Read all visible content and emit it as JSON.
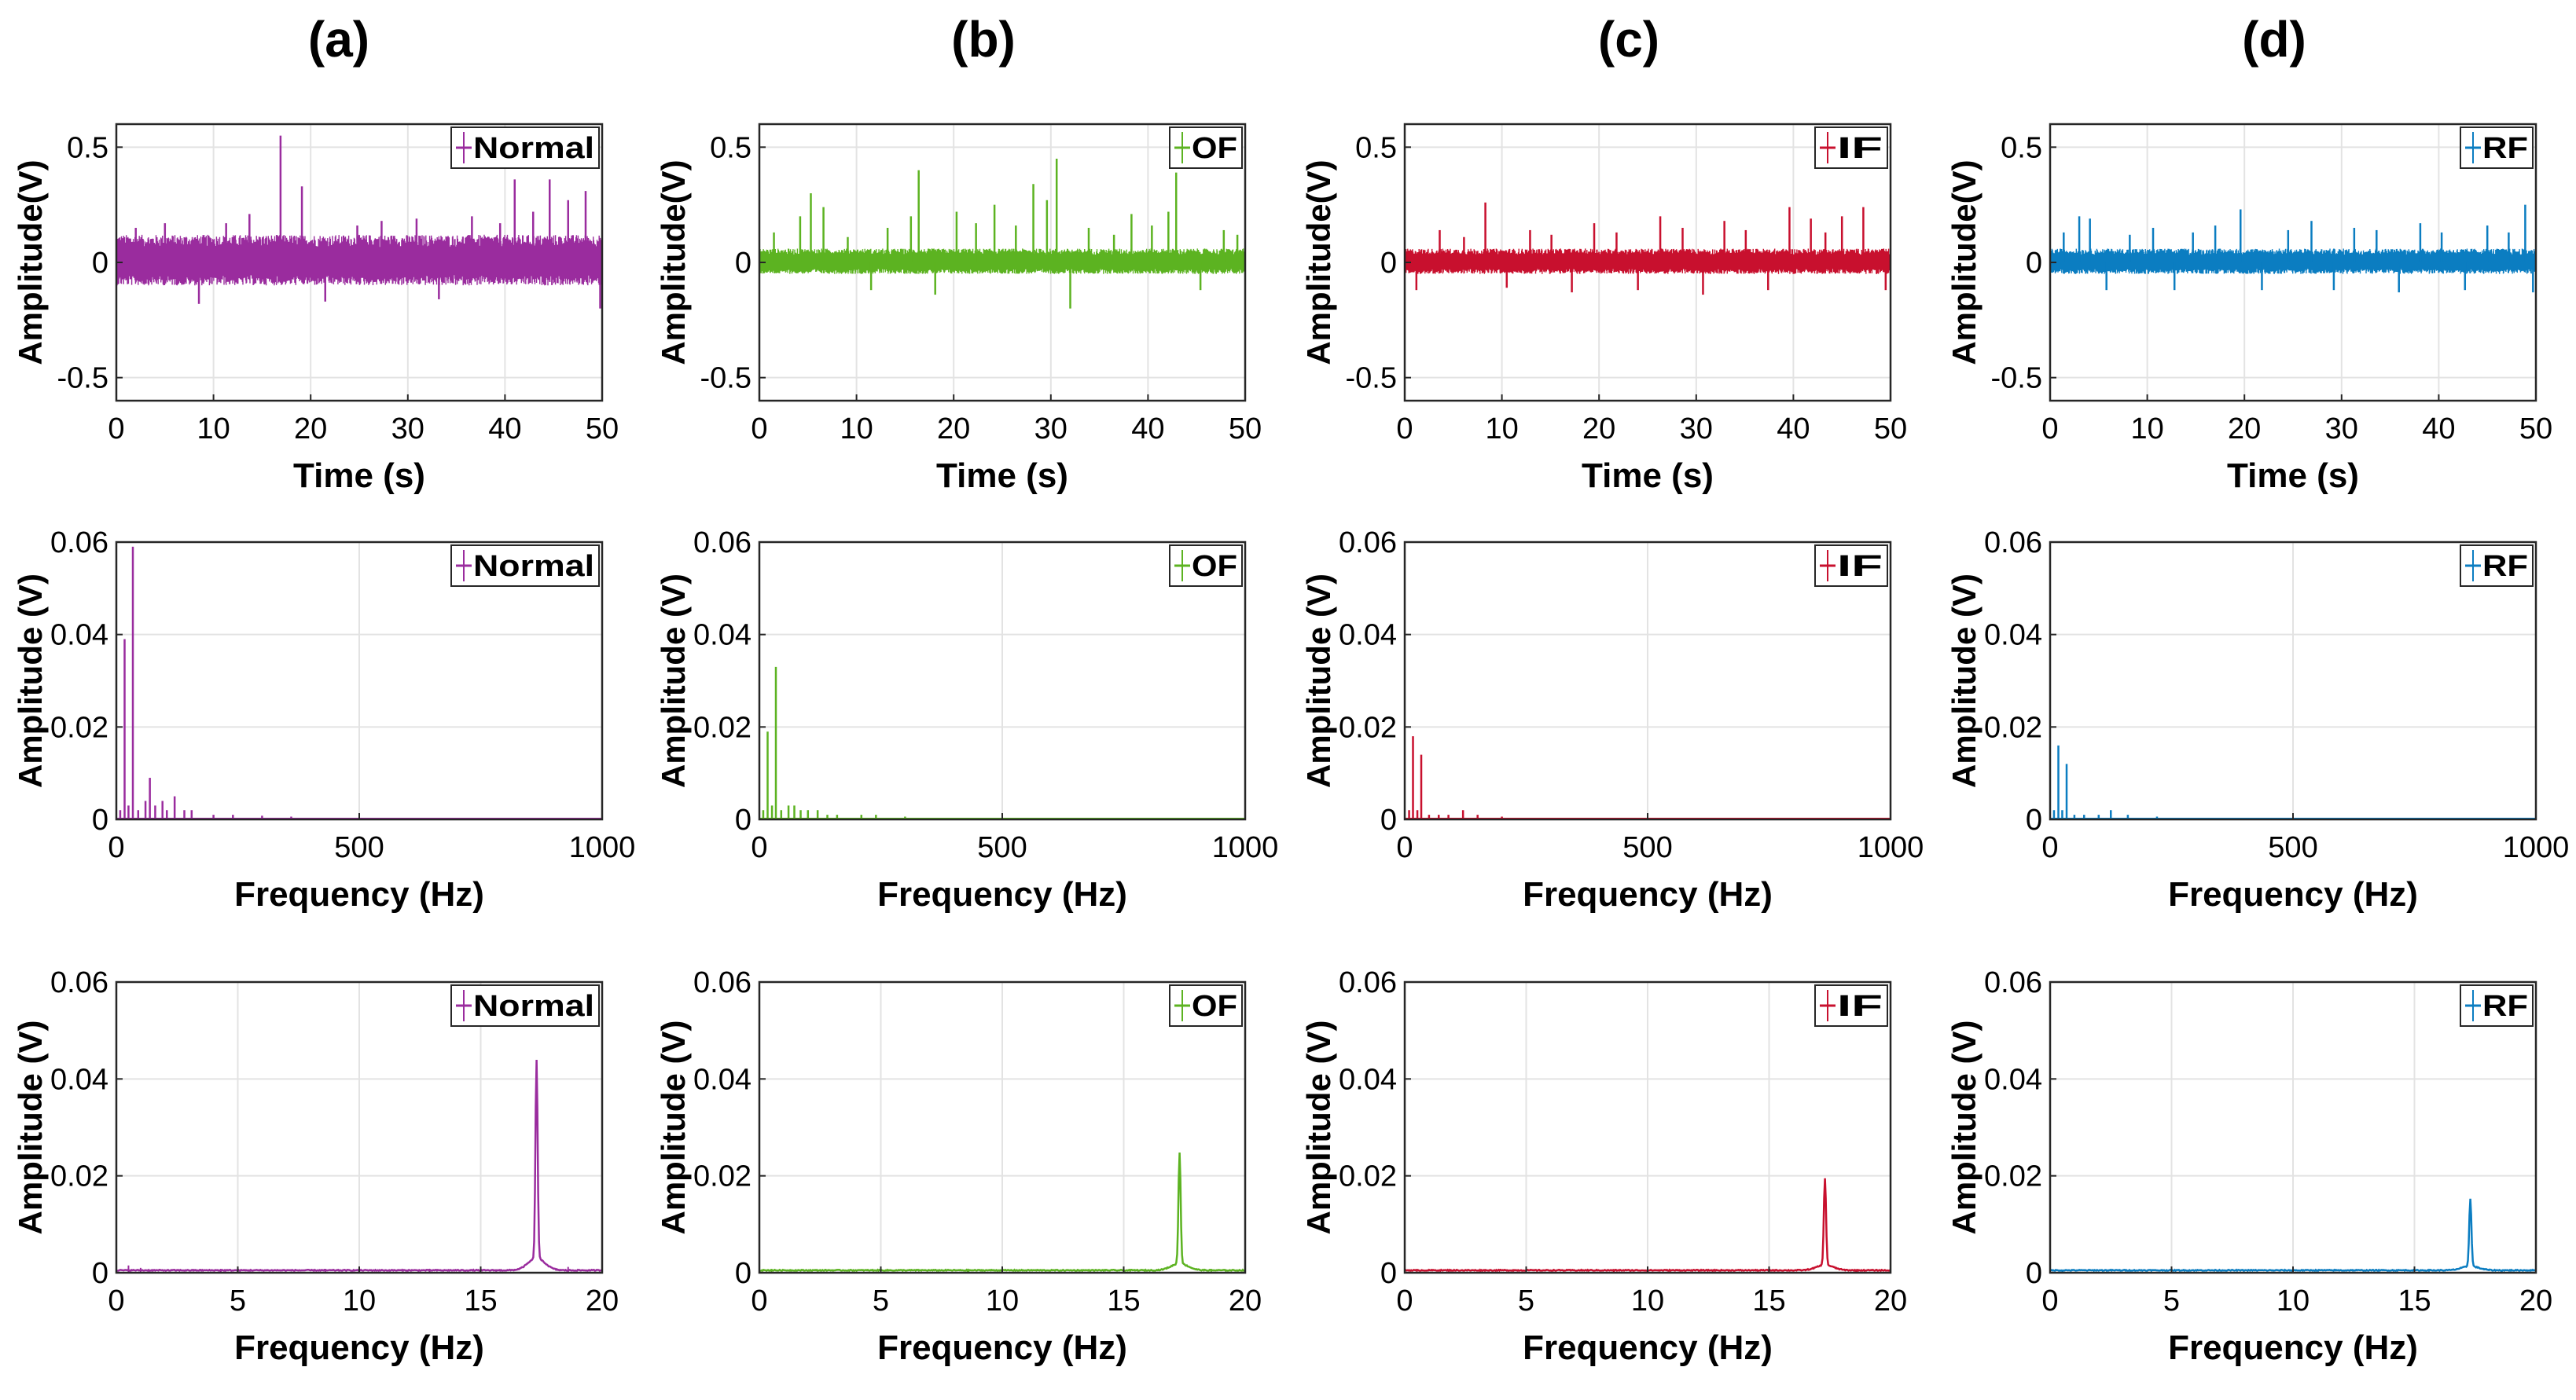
{
  "colors": {
    "a": "#9a2c9e",
    "b": "#5cb321",
    "c": "#c8102e",
    "d": "#0b7dc1"
  },
  "columns": [
    {
      "key": "a",
      "label": "(a)",
      "legend": "Normal"
    },
    {
      "key": "b",
      "label": "(b)",
      "legend": "OF"
    },
    {
      "key": "c",
      "label": "(c)",
      "legend": "IF"
    },
    {
      "key": "d",
      "label": "(d)",
      "legend": "RF"
    }
  ],
  "chart_data": [
    {
      "id": "a-time",
      "type": "line",
      "title": "",
      "xlabel": "Time (s)",
      "ylabel": "Amplitude(V)",
      "xlim": [
        0,
        50
      ],
      "ylim": [
        -0.6,
        0.6
      ],
      "xticks": [
        0,
        10,
        20,
        30,
        40,
        50
      ],
      "yticks": [
        -0.5,
        0,
        0.5
      ],
      "grid": true,
      "legend_position": "top-right",
      "series": [
        {
          "name": "Normal",
          "band": [
            -0.1,
            0.12
          ],
          "spikes": [
            [
              2.0,
              0.15
            ],
            [
              5.0,
              0.17
            ],
            [
              8.5,
              -0.18
            ],
            [
              11.3,
              0.17
            ],
            [
              13.7,
              0.21
            ],
            [
              16.9,
              0.55
            ],
            [
              19.1,
              0.33
            ],
            [
              21.5,
              -0.17
            ],
            [
              24.8,
              0.16
            ],
            [
              27.3,
              0.18
            ],
            [
              30.9,
              0.19
            ],
            [
              33.2,
              -0.16
            ],
            [
              36.6,
              0.2
            ],
            [
              39.5,
              0.17
            ],
            [
              41.0,
              0.36
            ],
            [
              42.9,
              0.22
            ],
            [
              44.6,
              0.36
            ],
            [
              46.5,
              0.27
            ],
            [
              48.3,
              0.31
            ],
            [
              49.8,
              -0.2
            ]
          ]
        }
      ]
    },
    {
      "id": "b-time",
      "type": "line",
      "title": "",
      "xlabel": "Time (s)",
      "ylabel": "Amplitude(V)",
      "xlim": [
        0,
        50
      ],
      "ylim": [
        -0.6,
        0.6
      ],
      "xticks": [
        0,
        10,
        20,
        30,
        40,
        50
      ],
      "yticks": [
        -0.5,
        0,
        0.5
      ],
      "grid": true,
      "legend_position": "top-right",
      "series": [
        {
          "name": "OF",
          "band": [
            -0.05,
            0.06
          ],
          "spikes": [
            [
              1.5,
              0.13
            ],
            [
              4.2,
              0.2
            ],
            [
              5.3,
              0.3
            ],
            [
              6.6,
              0.24
            ],
            [
              9.1,
              0.11
            ],
            [
              11.5,
              -0.12
            ],
            [
              13.2,
              0.15
            ],
            [
              15.6,
              0.2
            ],
            [
              16.4,
              0.4
            ],
            [
              18.1,
              -0.14
            ],
            [
              20.3,
              0.22
            ],
            [
              22.3,
              0.17
            ],
            [
              24.2,
              0.25
            ],
            [
              26.4,
              0.16
            ],
            [
              28.2,
              0.34
            ],
            [
              29.6,
              0.27
            ],
            [
              30.6,
              0.45
            ],
            [
              32.0,
              -0.2
            ],
            [
              33.9,
              0.15
            ],
            [
              36.5,
              0.12
            ],
            [
              38.3,
              0.21
            ],
            [
              40.4,
              0.16
            ],
            [
              42.1,
              0.22
            ],
            [
              42.9,
              0.39
            ],
            [
              45.4,
              -0.12
            ],
            [
              47.8,
              0.14
            ],
            [
              49.2,
              0.12
            ]
          ]
        }
      ]
    },
    {
      "id": "c-time",
      "type": "line",
      "title": "",
      "xlabel": "Time (s)",
      "ylabel": "Amplitude(V)",
      "xlim": [
        0,
        50
      ],
      "ylim": [
        -0.6,
        0.6
      ],
      "xticks": [
        0,
        10,
        20,
        30,
        40,
        50
      ],
      "yticks": [
        -0.5,
        0,
        0.5
      ],
      "grid": true,
      "legend_position": "top-right",
      "series": [
        {
          "name": "IF",
          "band": [
            -0.05,
            0.06
          ],
          "spikes": [
            [
              1.2,
              -0.12
            ],
            [
              3.6,
              0.14
            ],
            [
              6.1,
              0.11
            ],
            [
              8.3,
              0.26
            ],
            [
              10.5,
              -0.11
            ],
            [
              12.9,
              0.14
            ],
            [
              15.1,
              0.12
            ],
            [
              17.2,
              -0.13
            ],
            [
              19.5,
              0.17
            ],
            [
              21.8,
              0.13
            ],
            [
              24.0,
              -0.12
            ],
            [
              26.3,
              0.2
            ],
            [
              28.6,
              0.15
            ],
            [
              30.7,
              -0.14
            ],
            [
              32.9,
              0.18
            ],
            [
              35.1,
              0.14
            ],
            [
              37.4,
              -0.12
            ],
            [
              39.6,
              0.24
            ],
            [
              41.8,
              0.19
            ],
            [
              43.3,
              0.13
            ],
            [
              45.0,
              0.2
            ],
            [
              47.2,
              0.24
            ],
            [
              49.5,
              -0.12
            ]
          ]
        }
      ]
    },
    {
      "id": "d-time",
      "type": "line",
      "title": "",
      "xlabel": "Time (s)",
      "ylabel": "Amplitude(V)",
      "xlim": [
        0,
        50
      ],
      "ylim": [
        -0.6,
        0.6
      ],
      "xticks": [
        0,
        10,
        20,
        30,
        40,
        50
      ],
      "yticks": [
        -0.5,
        0,
        0.5
      ],
      "grid": true,
      "legend_position": "top-right",
      "series": [
        {
          "name": "RF",
          "band": [
            -0.05,
            0.06
          ],
          "spikes": [
            [
              1.4,
              0.13
            ],
            [
              3.0,
              0.2
            ],
            [
              4.1,
              0.19
            ],
            [
              5.8,
              -0.12
            ],
            [
              8.2,
              0.12
            ],
            [
              10.6,
              0.15
            ],
            [
              12.8,
              -0.12
            ],
            [
              14.7,
              0.13
            ],
            [
              17.0,
              0.16
            ],
            [
              19.6,
              0.23
            ],
            [
              21.8,
              -0.12
            ],
            [
              24.5,
              0.14
            ],
            [
              26.9,
              0.18
            ],
            [
              29.2,
              -0.12
            ],
            [
              31.3,
              0.15
            ],
            [
              33.6,
              0.14
            ],
            [
              35.9,
              -0.13
            ],
            [
              38.1,
              0.17
            ],
            [
              40.3,
              0.13
            ],
            [
              42.7,
              -0.12
            ],
            [
              45.0,
              0.16
            ],
            [
              47.2,
              0.13
            ],
            [
              48.9,
              0.25
            ],
            [
              49.7,
              -0.13
            ]
          ]
        }
      ]
    },
    {
      "id": "a-fft",
      "type": "line",
      "title": "",
      "xlabel": "Frequency (Hz)",
      "ylabel": "Amplitude (V)",
      "xlim": [
        0,
        1000
      ],
      "ylim": [
        0,
        0.06
      ],
      "xticks": [
        0,
        500,
        1000
      ],
      "yticks": [
        0,
        0.02,
        0.04,
        0.06
      ],
      "grid": true,
      "legend_position": "top-right",
      "series": [
        {
          "name": "Normal",
          "spikes": [
            [
              8,
              0.002
            ],
            [
              17,
              0.039
            ],
            [
              25,
              0.003
            ],
            [
              34,
              0.059
            ],
            [
              45,
              0.002
            ],
            [
              60,
              0.004
            ],
            [
              69,
              0.009
            ],
            [
              80,
              0.003
            ],
            [
              95,
              0.004
            ],
            [
              104,
              0.002
            ],
            [
              120,
              0.005
            ],
            [
              140,
              0.002
            ],
            [
              155,
              0.002
            ],
            [
              200,
              0.001
            ],
            [
              240,
              0.001
            ],
            [
              300,
              0.0008
            ],
            [
              360,
              0.0006
            ]
          ]
        }
      ]
    },
    {
      "id": "b-fft",
      "type": "line",
      "title": "",
      "xlabel": "Frequency (Hz)",
      "ylabel": "Amplitude (V)",
      "xlim": [
        0,
        1000
      ],
      "ylim": [
        0,
        0.06
      ],
      "xticks": [
        0,
        500,
        1000
      ],
      "yticks": [
        0,
        0.02,
        0.04,
        0.06
      ],
      "grid": true,
      "legend_position": "top-right",
      "series": [
        {
          "name": "OF",
          "spikes": [
            [
              8,
              0.002
            ],
            [
              17,
              0.019
            ],
            [
              26,
              0.003
            ],
            [
              34,
              0.033
            ],
            [
              45,
              0.002
            ],
            [
              60,
              0.003
            ],
            [
              72,
              0.003
            ],
            [
              85,
              0.002
            ],
            [
              100,
              0.002
            ],
            [
              120,
              0.002
            ],
            [
              140,
              0.001
            ],
            [
              160,
              0.001
            ],
            [
              210,
              0.001
            ],
            [
              240,
              0.001
            ],
            [
              300,
              0.0006
            ]
          ]
        }
      ]
    },
    {
      "id": "c-fft",
      "type": "line",
      "title": "",
      "xlabel": "Frequency (Hz)",
      "ylabel": "Amplitude (V)",
      "xlim": [
        0,
        1000
      ],
      "ylim": [
        0,
        0.06
      ],
      "xticks": [
        0,
        500,
        1000
      ],
      "yticks": [
        0,
        0.02,
        0.04,
        0.06
      ],
      "grid": true,
      "legend_position": "top-right",
      "series": [
        {
          "name": "IF",
          "spikes": [
            [
              9,
              0.002
            ],
            [
              17,
              0.018
            ],
            [
              26,
              0.002
            ],
            [
              34,
              0.014
            ],
            [
              50,
              0.001
            ],
            [
              70,
              0.001
            ],
            [
              90,
              0.001
            ],
            [
              120,
              0.002
            ],
            [
              150,
              0.001
            ],
            [
              200,
              0.0006
            ]
          ]
        }
      ]
    },
    {
      "id": "d-fft",
      "type": "line",
      "title": "",
      "xlabel": "Frequency (Hz)",
      "ylabel": "Amplitude (V)",
      "xlim": [
        0,
        1000
      ],
      "ylim": [
        0,
        0.06
      ],
      "xticks": [
        0,
        500,
        1000
      ],
      "yticks": [
        0,
        0.02,
        0.04,
        0.06
      ],
      "grid": true,
      "legend_position": "top-right",
      "series": [
        {
          "name": "RF",
          "spikes": [
            [
              8,
              0.002
            ],
            [
              17,
              0.016
            ],
            [
              25,
              0.002
            ],
            [
              34,
              0.012
            ],
            [
              50,
              0.001
            ],
            [
              70,
              0.001
            ],
            [
              100,
              0.001
            ],
            [
              125,
              0.002
            ],
            [
              160,
              0.001
            ],
            [
              220,
              0.0006
            ]
          ]
        }
      ]
    },
    {
      "id": "a-zoom",
      "type": "line",
      "title": "",
      "xlabel": "Frequency (Hz)",
      "ylabel": "Amplitude (V)",
      "xlim": [
        0,
        20
      ],
      "ylim": [
        0,
        0.06
      ],
      "xticks": [
        0,
        5,
        10,
        15,
        20
      ],
      "yticks": [
        0,
        0.02,
        0.04,
        0.06
      ],
      "grid": true,
      "legend_position": "top-right",
      "series": [
        {
          "name": "Normal",
          "peak": [
            17.3,
            0.041
          ],
          "small": [
            [
              0.5,
              0.0015
            ],
            [
              1.0,
              0.001
            ],
            [
              4.3,
              0.0008
            ],
            [
              8.6,
              0.0008
            ],
            [
              12.9,
              0.0008
            ],
            [
              18.6,
              0.0012
            ]
          ]
        }
      ]
    },
    {
      "id": "b-zoom",
      "type": "line",
      "title": "",
      "xlabel": "Frequency (Hz)",
      "ylabel": "Amplitude (V)",
      "xlim": [
        0,
        20
      ],
      "ylim": [
        0,
        0.06
      ],
      "xticks": [
        0,
        5,
        10,
        15,
        20
      ],
      "yticks": [
        0,
        0.02,
        0.04,
        0.06
      ],
      "grid": true,
      "legend_position": "top-right",
      "series": [
        {
          "name": "OF",
          "peak": [
            17.3,
            0.023
          ],
          "small": [
            [
              0.5,
              0.0008
            ],
            [
              8.6,
              0.0005
            ],
            [
              18.6,
              0.0008
            ]
          ]
        }
      ]
    },
    {
      "id": "c-zoom",
      "type": "line",
      "title": "",
      "xlabel": "Frequency (Hz)",
      "ylabel": "Amplitude (V)",
      "xlim": [
        0,
        20
      ],
      "ylim": [
        0,
        0.06
      ],
      "xticks": [
        0,
        5,
        10,
        15,
        20
      ],
      "yticks": [
        0,
        0.02,
        0.04,
        0.06
      ],
      "grid": true,
      "legend_position": "top-right",
      "series": [
        {
          "name": "IF",
          "peak": [
            17.3,
            0.018
          ],
          "small": [
            [
              0.5,
              0.0006
            ],
            [
              8.6,
              0.0005
            ],
            [
              18.6,
              0.0007
            ]
          ]
        }
      ]
    },
    {
      "id": "d-zoom",
      "type": "line",
      "title": "",
      "xlabel": "Frequency (Hz)",
      "ylabel": "Amplitude (V)",
      "xlim": [
        0,
        20
      ],
      "ylim": [
        0,
        0.06
      ],
      "xticks": [
        0,
        5,
        10,
        15,
        20
      ],
      "yticks": [
        0,
        0.02,
        0.04,
        0.06
      ],
      "grid": true,
      "legend_position": "top-right",
      "series": [
        {
          "name": "RF",
          "peak": [
            17.3,
            0.014
          ],
          "small": [
            [
              0.5,
              0.0005
            ],
            [
              18.6,
              0.0006
            ]
          ]
        }
      ]
    }
  ]
}
